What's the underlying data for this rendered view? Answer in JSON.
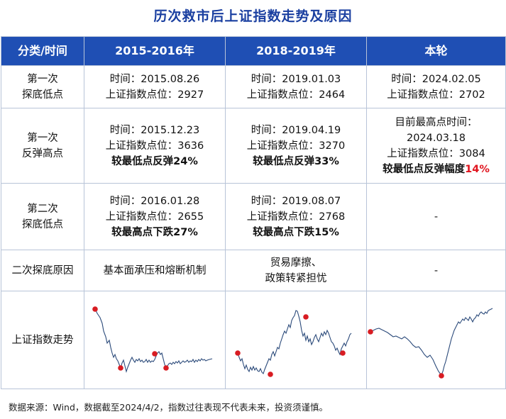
{
  "title": "历次救市后上证指数走势及原因",
  "header": {
    "col0": "分类/时间",
    "col1": "2015-2016年",
    "col2": "2018-2019年",
    "col3": "本轮"
  },
  "rows": {
    "r1": {
      "label_1": "第一次",
      "label_2": "探底低点",
      "c1": [
        "时间：2015.08.26",
        "上证指数点位：2927"
      ],
      "c2": [
        "时间：2019.01.03",
        "上证指数点位：2464"
      ],
      "c3": [
        "时间：2024.02.05",
        "上证指数点位：2702"
      ]
    },
    "r2": {
      "label_1": "第一次",
      "label_2": "反弹高点",
      "c1": [
        "时间：2015.12.23",
        "上证指数点位：3636",
        "较最低点反弹24%"
      ],
      "c2": [
        "时间：2019.04.19",
        "上证指数点位：3270",
        "较最低点反弹33%"
      ],
      "c3": [
        "目前最高点时间：",
        "2024.03.18",
        "上证指数点位：3084"
      ],
      "c3_bold": "较最低点反弹幅度",
      "c3_pct": "14%"
    },
    "r3": {
      "label_1": "第二次",
      "label_2": "探底低点",
      "c1": [
        "时间：2016.01.28",
        "上证指数点位：2655",
        "较最高点下跌27%"
      ],
      "c2": [
        "时间：2019.08.07",
        "上证指数点位：2768",
        "较最高点下跌15%"
      ],
      "c3": "-"
    },
    "r4": {
      "label": "二次探底原因",
      "c1": "基本面承压和熔断机制",
      "c2": [
        "贸易摩擦、",
        "政策转紧担忧"
      ],
      "c3": "-"
    },
    "r5": {
      "label": "上证指数走势"
    }
  },
  "footer": "数据来源：Wind，数据截至2024/4/2，指数过往表现不代表未来，投资须谨慎。",
  "colors": {
    "header_bg": "#1f4fb4",
    "title": "#1a3fa0",
    "line": "#2b4a7a",
    "marker": "#d81c22",
    "highlight": "#e0141e"
  }
}
